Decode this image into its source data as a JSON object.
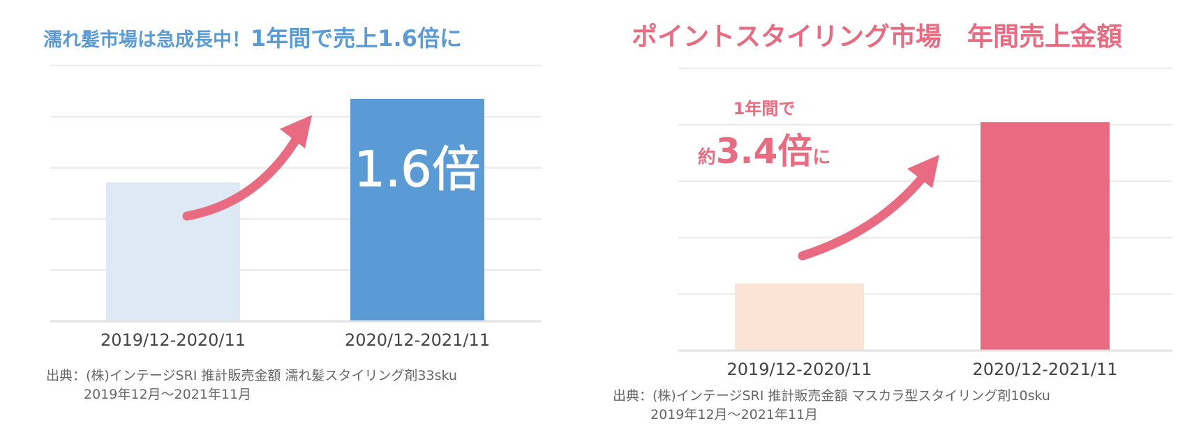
{
  "charts": [
    {
      "id": "left",
      "title_prefix": "濡れ髪市場は急成長中！",
      "title_emphasis": "1年間で売上1.6倍に",
      "annotation": "1.6倍",
      "source_line1": "出典：(株)インテージSRI  推計販売金額 濡れ髪スタイリング剤33sku",
      "source_line2": "2019年12月～2021年11月",
      "colors": {
        "title": "#5b9bd5",
        "bar1": "#ddeaf6",
        "bar2": "#5b9bd5",
        "arrow": "#e96b81",
        "annotation": "#ffffff"
      }
    },
    {
      "id": "right",
      "title": "ポイントスタイリング市場　年間売上金額",
      "annotation_line1": "1年間で",
      "annotation_pre": "約",
      "annotation_big": "3.4倍",
      "annotation_post": "に",
      "source_line1": "出典：(株)インテージSRI  推計販売金額 マスカラ型スタイリング剤10sku",
      "source_line2": "2019年12月～2021年11月",
      "colors": {
        "title": "#e96b81",
        "bar1": "#fbe4d5",
        "bar2": "#e96b81",
        "arrow": "#e96b81",
        "annotation": "#e96b81"
      }
    }
  ],
  "chart_data": [
    {
      "type": "bar",
      "categories": [
        "2019/12-2020/11",
        "2020/12-2021/11"
      ],
      "values": [
        1.0,
        1.6
      ],
      "title": "濡れ髪市場は急成長中！1年間で売上1.6倍に",
      "xlabel": "",
      "ylabel": "",
      "ylim": [
        0,
        1.84
      ],
      "grid": true,
      "annotations": [
        "1.6倍"
      ]
    },
    {
      "type": "bar",
      "categories": [
        "2019/12-2020/11",
        "2020/12-2021/11"
      ],
      "values": [
        1.0,
        3.4
      ],
      "title": "ポイントスタイリング市場　年間売上金額",
      "xlabel": "",
      "ylabel": "",
      "ylim": [
        0,
        4.2
      ],
      "grid": true,
      "annotations": [
        "1年間で",
        "約3.4倍に"
      ]
    }
  ]
}
